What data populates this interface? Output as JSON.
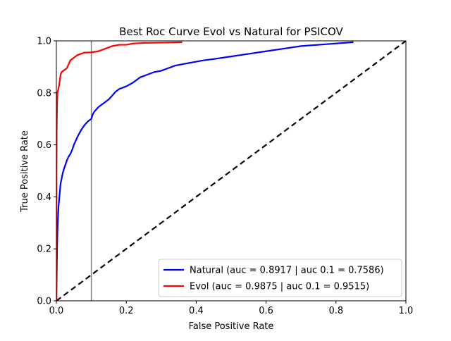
{
  "chart_data": {
    "type": "line",
    "title": "Best Roc Curve Evol vs Natural for PSICOV",
    "xlabel": "False Positive Rate",
    "ylabel": "True Positive Rate",
    "xlim": [
      0.0,
      1.0
    ],
    "ylim": [
      0.0,
      1.0
    ],
    "grid": false,
    "legend_position": "lower-right",
    "x_ticks": [
      {
        "value": 0.0,
        "label": "0.0"
      },
      {
        "value": 0.2,
        "label": "0.2"
      },
      {
        "value": 0.4,
        "label": "0.4"
      },
      {
        "value": 0.6,
        "label": "0.6"
      },
      {
        "value": 0.8,
        "label": "0.8"
      },
      {
        "value": 1.0,
        "label": "1.0"
      }
    ],
    "y_ticks": [
      {
        "value": 0.0,
        "label": "0.0"
      },
      {
        "value": 0.2,
        "label": "0.2"
      },
      {
        "value": 0.4,
        "label": "0.4"
      },
      {
        "value": 0.6,
        "label": "0.6"
      },
      {
        "value": 0.8,
        "label": "0.8"
      },
      {
        "value": 1.0,
        "label": "1.0"
      }
    ],
    "series": [
      {
        "name": "Natural (auc = 0.8917 | auc 0.1 = 0.7586)",
        "color": "#0000ff",
        "style": "solid",
        "x": [
          0.0,
          0.001,
          0.002,
          0.003,
          0.004,
          0.005,
          0.006,
          0.008,
          0.01,
          0.012,
          0.015,
          0.018,
          0.02,
          0.025,
          0.03,
          0.035,
          0.04,
          0.045,
          0.05,
          0.06,
          0.07,
          0.08,
          0.09,
          0.1,
          0.105,
          0.11,
          0.12,
          0.13,
          0.14,
          0.15,
          0.16,
          0.17,
          0.18,
          0.19,
          0.2,
          0.22,
          0.24,
          0.26,
          0.28,
          0.3,
          0.32,
          0.34,
          0.36,
          0.38,
          0.4,
          0.42,
          0.45,
          0.5,
          0.55,
          0.6,
          0.65,
          0.7,
          0.75,
          0.8,
          0.85
        ],
        "y": [
          0.0,
          0.1,
          0.2,
          0.26,
          0.3,
          0.33,
          0.36,
          0.39,
          0.42,
          0.45,
          0.47,
          0.49,
          0.5,
          0.52,
          0.54,
          0.555,
          0.565,
          0.58,
          0.6,
          0.63,
          0.655,
          0.675,
          0.69,
          0.7,
          0.72,
          0.73,
          0.745,
          0.755,
          0.765,
          0.775,
          0.79,
          0.805,
          0.815,
          0.82,
          0.825,
          0.84,
          0.86,
          0.87,
          0.88,
          0.885,
          0.895,
          0.905,
          0.91,
          0.915,
          0.92,
          0.925,
          0.93,
          0.94,
          0.95,
          0.96,
          0.97,
          0.98,
          0.985,
          0.99,
          0.995
        ]
      },
      {
        "name": "Evol (auc = 0.9875 | auc 0.1 = 0.9515)",
        "color": "#ff0000",
        "style": "solid",
        "x": [
          0.0,
          0.0005,
          0.001,
          0.002,
          0.003,
          0.005,
          0.008,
          0.01,
          0.012,
          0.015,
          0.02,
          0.025,
          0.03,
          0.035,
          0.04,
          0.05,
          0.06,
          0.07,
          0.08,
          0.09,
          0.1,
          0.12,
          0.14,
          0.16,
          0.18,
          0.2,
          0.22,
          0.25,
          0.3,
          0.36
        ],
        "y": [
          0.0,
          0.5,
          0.65,
          0.75,
          0.8,
          0.81,
          0.83,
          0.85,
          0.87,
          0.88,
          0.885,
          0.89,
          0.895,
          0.91,
          0.925,
          0.935,
          0.945,
          0.95,
          0.955,
          0.955,
          0.956,
          0.96,
          0.97,
          0.98,
          0.985,
          0.985,
          0.99,
          0.992,
          0.993,
          0.995
        ]
      },
      {
        "name": "chance",
        "color": "#000000",
        "style": "dashed",
        "x": [
          0.0,
          1.0
        ],
        "y": [
          0.0,
          1.0
        ]
      },
      {
        "name": "fpr-0.1-marker",
        "color": "#808080",
        "style": "solid",
        "x": [
          0.1,
          0.1
        ],
        "y": [
          0.0,
          1.0
        ]
      }
    ],
    "legend": [
      {
        "series_index": 0,
        "label": "Natural (auc = 0.8917 | auc 0.1 = 0.7586)",
        "color": "#0000ff"
      },
      {
        "series_index": 1,
        "label": "Evol (auc = 0.9875 | auc 0.1 = 0.9515)",
        "color": "#ff0000"
      }
    ]
  }
}
